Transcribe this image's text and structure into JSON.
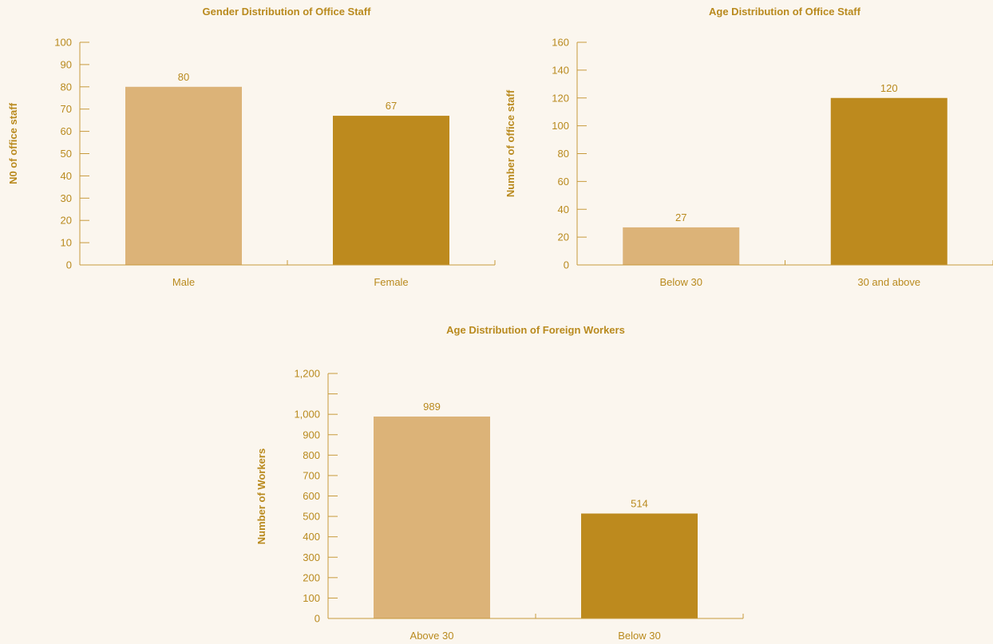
{
  "colors": {
    "background": "#fbf6ee",
    "text": "#b98a1e",
    "axis": "#c79a3c",
    "bar_light": "#dcb378",
    "bar_dark": "#bd8a1e"
  },
  "chart_data": [
    {
      "type": "bar",
      "title": "Gender Distribution of Office Staff",
      "ylabel": "N0 of office staff",
      "xlabel": "",
      "categories": [
        "Male",
        "Female"
      ],
      "values": [
        80,
        67
      ],
      "data_labels": [
        "80",
        "67"
      ],
      "bar_colors": [
        "#dcb378",
        "#bd8a1e"
      ],
      "ylim": [
        0,
        100
      ],
      "yticks": [
        0,
        10,
        20,
        30,
        40,
        50,
        60,
        70,
        80,
        90,
        100
      ],
      "ytick_labels": [
        "0",
        "10",
        "20",
        "30",
        "40",
        "50",
        "60",
        "70",
        "80",
        "90",
        "100"
      ],
      "grid": false,
      "legend": "none"
    },
    {
      "type": "bar",
      "title": "Age Distribution of Office Staff",
      "ylabel": "Number of office staff",
      "xlabel": "",
      "categories": [
        "Below 30",
        "30 and above"
      ],
      "values": [
        27,
        120
      ],
      "data_labels": [
        "27",
        "120"
      ],
      "bar_colors": [
        "#dcb378",
        "#bd8a1e"
      ],
      "ylim": [
        0,
        160
      ],
      "yticks": [
        0,
        20,
        40,
        60,
        80,
        100,
        120,
        140,
        160
      ],
      "ytick_labels": [
        "0",
        "20",
        "40",
        "60",
        "80",
        "100",
        "120",
        "140",
        "160"
      ],
      "grid": false,
      "legend": "none"
    },
    {
      "type": "bar",
      "title": "Age Distribution of Foreign Workers",
      "ylabel": "Number of Workers",
      "xlabel": "",
      "categories": [
        "Above 30",
        "Below 30"
      ],
      "values": [
        989,
        514
      ],
      "data_labels": [
        "989",
        "514"
      ],
      "bar_colors": [
        "#dcb378",
        "#bd8a1e"
      ],
      "ylim": [
        0,
        1200
      ],
      "yticks": [
        0,
        100,
        200,
        300,
        400,
        500,
        600,
        700,
        800,
        900,
        1000,
        1100,
        1200
      ],
      "ytick_labels": [
        "0",
        "100",
        "200",
        "300",
        "400",
        "500",
        "600",
        "700",
        "800",
        "900",
        "1,000",
        "",
        "1,200"
      ],
      "grid": false,
      "legend": "none"
    }
  ]
}
